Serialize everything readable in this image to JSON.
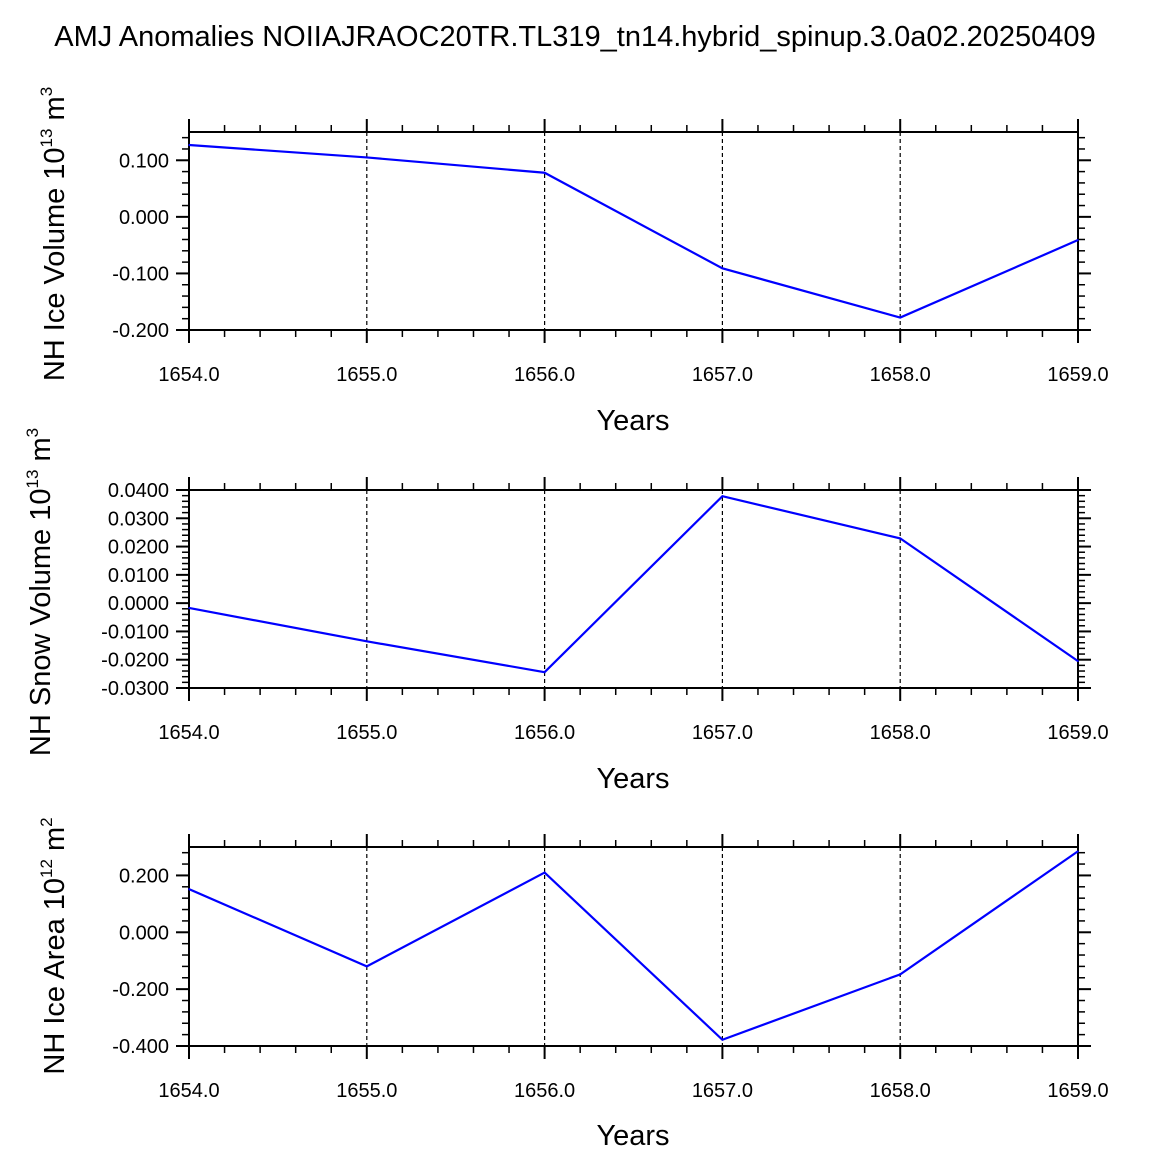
{
  "title": "AMJ Anomalies NOIIAJRAOC20TR.TL319_tn14.hybrid_spinup.3.0a02.20250409",
  "colors": {
    "line": "#0000ff",
    "axes": "#000000",
    "grid": "#000000",
    "background": "#ffffff"
  },
  "chart_data": [
    {
      "type": "line",
      "xlabel": "Years",
      "ylabel": {
        "prefix": "NH Ice Volume 10",
        "exp": "13",
        "unit": " m",
        "unit_exp": "3"
      },
      "x": [
        1654.0,
        1655.0,
        1656.0,
        1657.0,
        1658.0,
        1659.0
      ],
      "values": [
        0.127,
        0.105,
        0.078,
        -0.091,
        -0.178,
        -0.041
      ],
      "xlim": [
        1654.0,
        1659.0
      ],
      "ylim": [
        -0.2,
        0.15
      ],
      "x_ticks": [
        "1654.0",
        "1655.0",
        "1656.0",
        "1657.0",
        "1658.0",
        "1659.0"
      ],
      "y_ticks": [
        {
          "value": 0.1,
          "label": "0.100"
        },
        {
          "value": 0.0,
          "label": "0.000"
        },
        {
          "value": -0.1,
          "label": "-0.100"
        },
        {
          "value": -0.2,
          "label": "-0.200"
        }
      ],
      "reference_line": 0.15,
      "grid": "vertical dashed at x ticks"
    },
    {
      "type": "line",
      "xlabel": "Years",
      "ylabel": {
        "prefix": "NH Snow Volume 10",
        "exp": "13",
        "unit": " m",
        "unit_exp": "3"
      },
      "x": [
        1654.0,
        1655.0,
        1656.0,
        1657.0,
        1658.0,
        1659.0
      ],
      "values": [
        -0.0017,
        -0.0135,
        -0.0244,
        0.0378,
        0.0229,
        -0.0205
      ],
      "xlim": [
        1654.0,
        1659.0
      ],
      "ylim": [
        -0.03,
        0.04
      ],
      "x_ticks": [
        "1654.0",
        "1655.0",
        "1656.0",
        "1657.0",
        "1658.0",
        "1659.0"
      ],
      "y_ticks": [
        {
          "value": 0.04,
          "label": "0.0400"
        },
        {
          "value": 0.03,
          "label": "0.0300"
        },
        {
          "value": 0.02,
          "label": "0.0200"
        },
        {
          "value": 0.01,
          "label": "0.0100"
        },
        {
          "value": 0.0,
          "label": "0.0000"
        },
        {
          "value": -0.01,
          "label": "-0.0100"
        },
        {
          "value": -0.02,
          "label": "-0.0200"
        },
        {
          "value": -0.03,
          "label": "-0.0300"
        }
      ],
      "reference_line": 0.04,
      "grid": "vertical dashed at x ticks"
    },
    {
      "type": "line",
      "xlabel": "Years",
      "ylabel": {
        "prefix": "NH Ice Area 10",
        "exp": "12",
        "unit": " m",
        "unit_exp": "2"
      },
      "x": [
        1654.0,
        1655.0,
        1656.0,
        1657.0,
        1658.0,
        1659.0
      ],
      "values": [
        0.152,
        -0.12,
        0.21,
        -0.378,
        -0.148,
        0.285
      ],
      "xlim": [
        1654.0,
        1659.0
      ],
      "ylim": [
        -0.4,
        0.3
      ],
      "x_ticks": [
        "1654.0",
        "1655.0",
        "1656.0",
        "1657.0",
        "1658.0",
        "1659.0"
      ],
      "y_ticks": [
        {
          "value": 0.2,
          "label": "0.200"
        },
        {
          "value": 0.0,
          "label": "0.000"
        },
        {
          "value": -0.2,
          "label": "-0.200"
        },
        {
          "value": -0.4,
          "label": "-0.400"
        }
      ],
      "reference_line": 0.3,
      "grid": "vertical dashed at x ticks"
    }
  ]
}
